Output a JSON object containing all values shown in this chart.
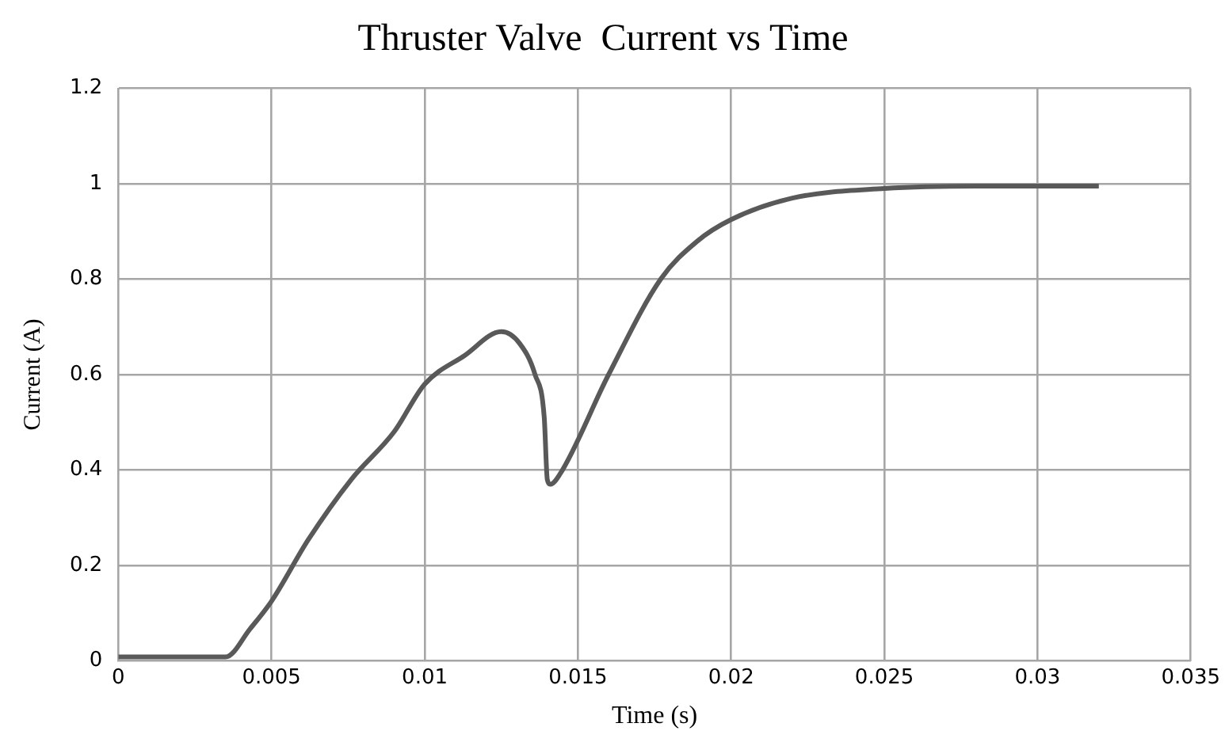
{
  "chart_data": {
    "type": "line",
    "title": "Thruster Valve  Current vs Time",
    "xlabel": "Time (s)",
    "ylabel": "Current (A)",
    "x": [
      0,
      0.001,
      0.002,
      0.003,
      0.0035,
      0.0043,
      0.005,
      0.0062,
      0.0076,
      0.009,
      0.01,
      0.0113,
      0.0125,
      0.0131,
      0.0136,
      0.0139,
      0.014,
      0.0141,
      0.0144,
      0.016,
      0.0177,
      0.0189,
      0.02,
      0.022,
      0.025,
      0.028,
      0.032
    ],
    "series": [
      {
        "color": "#595959",
        "values": [
          0.008,
          0.008,
          0.008,
          0.008,
          0.008,
          0.067,
          0.125,
          0.254,
          0.38,
          0.48,
          0.58,
          0.64,
          0.69,
          0.665,
          0.6,
          0.51,
          0.38,
          0.37,
          0.39,
          0.6,
          0.8,
          0.88,
          0.925,
          0.97,
          0.99,
          0.995,
          0.995
        ]
      }
    ],
    "xlim": [
      0,
      0.035
    ],
    "xticks": [
      0,
      0.005,
      0.01,
      0.015,
      0.02,
      0.025,
      0.03,
      0.035
    ],
    "ylim": [
      0,
      1.2
    ],
    "yticks": [
      0,
      0.2,
      0.4,
      0.6,
      0.8,
      1,
      1.2
    ],
    "grid": true,
    "legend": false,
    "marker": "none",
    "line_style": "solid"
  }
}
